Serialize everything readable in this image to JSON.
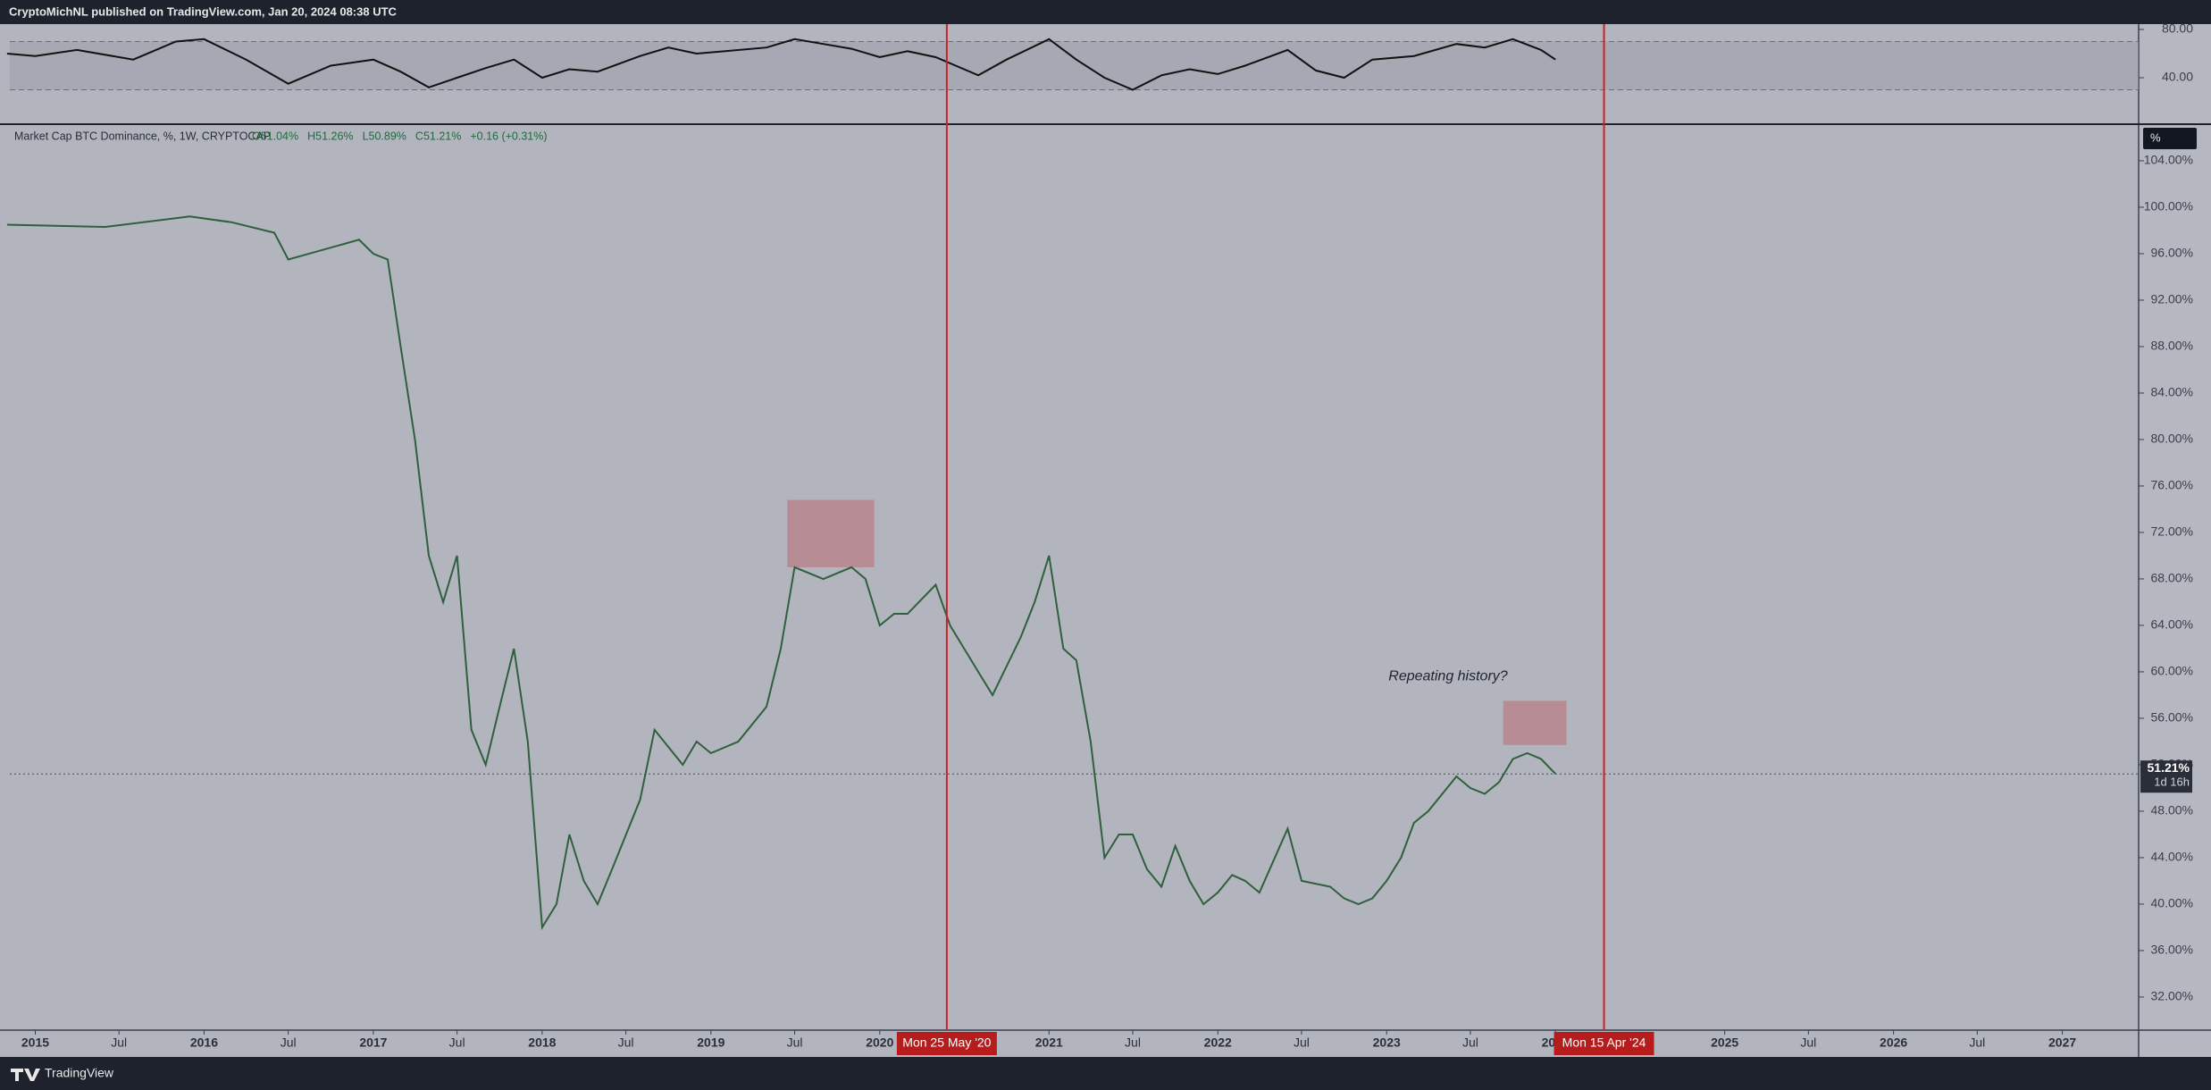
{
  "header": "CryptoMichNL published on TradingView.com, Jan 20, 2024 08:38 UTC",
  "footer": "TradingView",
  "scale_button": "%",
  "chart_data": [
    {
      "type": "line",
      "title": "Market Cap BTC Dominance, %, 1W, CRYPTOCAP",
      "legend_values": [
        "O51.04%",
        "H51.26%",
        "L50.89%",
        "C51.21%",
        "+0.16 (+0.31%)"
      ],
      "color": "#2f5f3c",
      "x": [
        "2014-11",
        "2015-06",
        "2015-12",
        "2016-03",
        "2016-06",
        "2016-07",
        "2016-12",
        "2017-01",
        "2017-02",
        "2017-03",
        "2017-04",
        "2017-05",
        "2017-06",
        "2017-07",
        "2017-08",
        "2017-09",
        "2017-10",
        "2017-11",
        "2017-12",
        "2018-01",
        "2018-02",
        "2018-03",
        "2018-04",
        "2018-05",
        "2018-06",
        "2018-08",
        "2018-09",
        "2018-11",
        "2018-12",
        "2019-01",
        "2019-03",
        "2019-05",
        "2019-06",
        "2019-07",
        "2019-09",
        "2019-11",
        "2019-12",
        "2020-01",
        "2020-02",
        "2020-03",
        "2020-05",
        "2020-06",
        "2020-08",
        "2020-09",
        "2020-11",
        "2020-12",
        "2021-01",
        "2021-02",
        "2021-03",
        "2021-04",
        "2021-05",
        "2021-06",
        "2021-07",
        "2021-08",
        "2021-09",
        "2021-10",
        "2021-11",
        "2021-12",
        "2022-01",
        "2022-02",
        "2022-03",
        "2022-04",
        "2022-06",
        "2022-07",
        "2022-09",
        "2022-10",
        "2022-11",
        "2022-12",
        "2023-01",
        "2023-02",
        "2023-03",
        "2023-04",
        "2023-06",
        "2023-07",
        "2023-08",
        "2023-09",
        "2023-10",
        "2023-11",
        "2023-12",
        "2024-01"
      ],
      "values": [
        98.5,
        98.3,
        99.2,
        98.7,
        97.8,
        95.5,
        97.2,
        96,
        95.5,
        88,
        80,
        70,
        66,
        70,
        55,
        52,
        57,
        62,
        54,
        38,
        40,
        46,
        42,
        40,
        43,
        49,
        55,
        52,
        54,
        53,
        54,
        57,
        62,
        69,
        68,
        69,
        68,
        64,
        65,
        65,
        67.5,
        64,
        60,
        58,
        63,
        66,
        70,
        62,
        61,
        54,
        44,
        46,
        46,
        43,
        41.5,
        45,
        42,
        40,
        41,
        42.5,
        42,
        41,
        46.5,
        42,
        41.5,
        40.5,
        40,
        40.5,
        42,
        44,
        47,
        48,
        51,
        50,
        49.5,
        50.5,
        52.5,
        53,
        52.5,
        51.21
      ],
      "ylim": [
        29.15,
        107.15
      ],
      "yticks": [
        {
          "value": 32,
          "label": "32.00%"
        },
        {
          "value": 36,
          "label": "36.00%"
        },
        {
          "value": 40,
          "label": "40.00%"
        },
        {
          "value": 44,
          "label": "44.00%"
        },
        {
          "value": 48,
          "label": "48.00%"
        },
        {
          "value": 52,
          "label": "52.00%"
        },
        {
          "value": 56,
          "label": "56.00%"
        },
        {
          "value": 60,
          "label": "60.00%"
        },
        {
          "value": 64,
          "label": "64.00%"
        },
        {
          "value": 68,
          "label": "68.00%"
        },
        {
          "value": 72,
          "label": "72.00%"
        },
        {
          "value": 76,
          "label": "76.00%"
        },
        {
          "value": 80,
          "label": "80.00%"
        },
        {
          "value": 84,
          "label": "84.00%"
        },
        {
          "value": 88,
          "label": "88.00%"
        },
        {
          "value": 92,
          "label": "92.00%"
        },
        {
          "value": 96,
          "label": "96.00%"
        },
        {
          "value": 100,
          "label": "100.00%"
        },
        {
          "value": 104,
          "label": "104.00%"
        }
      ],
      "xlim": [
        "2014-11-07",
        "2027-06-15"
      ],
      "xticks": [
        {
          "value": "2015-01",
          "label": "2015"
        },
        {
          "value": "2015-07",
          "label": "Jul"
        },
        {
          "value": "2016-01",
          "label": "2016"
        },
        {
          "value": "2016-07",
          "label": "Jul"
        },
        {
          "value": "2017-01",
          "label": "2017"
        },
        {
          "value": "2017-07",
          "label": "Jul"
        },
        {
          "value": "2018-01",
          "label": "2018"
        },
        {
          "value": "2018-07",
          "label": "Jul"
        },
        {
          "value": "2019-01",
          "label": "2019"
        },
        {
          "value": "2019-07",
          "label": "Jul"
        },
        {
          "value": "2020-01",
          "label": "2020"
        },
        {
          "value": "2021-01",
          "label": "2021"
        },
        {
          "value": "2021-07",
          "label": "Jul"
        },
        {
          "value": "2022-01",
          "label": "2022"
        },
        {
          "value": "2022-07",
          "label": "Jul"
        },
        {
          "value": "2023-01",
          "label": "2023"
        },
        {
          "value": "2023-07",
          "label": "Jul"
        },
        {
          "value": "2024-01",
          "label": "2024"
        },
        {
          "value": "2025-01",
          "label": "2025"
        },
        {
          "value": "2025-07",
          "label": "Jul"
        },
        {
          "value": "2026-01",
          "label": "2026"
        },
        {
          "value": "2026-07",
          "label": "Jul"
        },
        {
          "value": "2027-01",
          "label": "2027"
        }
      ],
      "last": {
        "value": 51.21,
        "label": "51.21%"
      },
      "countdown": "1d 16h",
      "markers": [
        {
          "value": "2020-05-25",
          "label": "Mon 25 May '20"
        },
        {
          "value": "2024-04-15",
          "label": "Mon 15 Apr '24"
        }
      ],
      "boxes": [
        {
          "x": [
            "2019-06-15",
            "2019-12-20"
          ],
          "y": [
            69,
            74.8
          ]
        },
        {
          "x": [
            "2023-09-10",
            "2024-01-25"
          ],
          "y": [
            53.7,
            57.5
          ]
        }
      ],
      "annotations": [
        {
          "text": "Repeating history?",
          "x": "2023-01-05",
          "y": 59.6
        }
      ]
    },
    {
      "type": "line",
      "color": "#111111",
      "x": [
        "2014-11",
        "2015-01",
        "2015-04",
        "2015-08",
        "2015-11",
        "2016-01",
        "2016-04",
        "2016-07",
        "2016-10",
        "2017-01",
        "2017-03",
        "2017-05",
        "2017-07",
        "2017-09",
        "2017-11",
        "2018-01",
        "2018-03",
        "2018-05",
        "2018-08",
        "2018-10",
        "2018-12",
        "2019-02",
        "2019-05",
        "2019-07",
        "2019-09",
        "2019-11",
        "2020-01",
        "2020-03",
        "2020-05",
        "2020-08",
        "2020-10",
        "2021-01",
        "2021-03",
        "2021-05",
        "2021-07",
        "2021-09",
        "2021-11",
        "2022-01",
        "2022-03",
        "2022-06",
        "2022-08",
        "2022-10",
        "2022-12",
        "2023-03",
        "2023-06",
        "2023-08",
        "2023-10",
        "2023-12",
        "2024-01"
      ],
      "values": [
        60,
        58,
        63,
        55,
        70,
        72,
        55,
        35,
        50,
        55,
        45,
        32,
        40,
        48,
        55,
        40,
        47,
        45,
        58,
        65,
        60,
        62,
        65,
        72,
        68,
        64,
        57,
        62,
        57,
        42,
        55,
        72,
        55,
        40,
        30,
        42,
        47,
        43,
        50,
        63,
        46,
        40,
        55,
        58,
        68,
        65,
        72,
        63,
        55
      ],
      "ylim": [
        1.5,
        84.4
      ],
      "yticks": [
        {
          "value": 40,
          "label": "40.00"
        },
        {
          "value": 80,
          "label": "80.00"
        }
      ],
      "band": [
        30,
        70
      ],
      "xlim": [
        "2014-11-07",
        "2027-06-15"
      ]
    }
  ]
}
